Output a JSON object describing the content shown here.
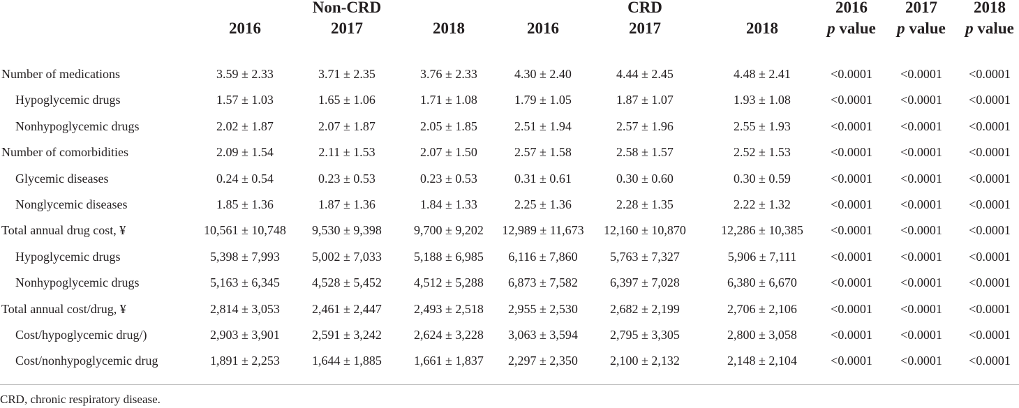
{
  "table": {
    "header": {
      "groups": [
        "Non-CRD",
        "CRD"
      ],
      "years": [
        "2016",
        "2017",
        "2018",
        "2016",
        "2017",
        "2018"
      ],
      "p_columns": [
        {
          "year": "2016",
          "label": "p value"
        },
        {
          "year": "2017",
          "label": "p value"
        },
        {
          "year": "2018",
          "label": "p value"
        }
      ]
    },
    "sections": [
      {
        "label": "Number of medications",
        "cells": [
          "3.59 ± 2.33",
          "3.71 ± 2.35",
          "3.76 ± 2.33",
          "4.30 ± 2.40",
          "4.44 ± 2.45",
          "4.48 ± 2.41",
          "<0.0001",
          "<0.0001",
          "<0.0001"
        ],
        "sub": [
          {
            "label": "Hypoglycemic drugs",
            "cells": [
              "1.57 ± 1.03",
              "1.65 ± 1.06",
              "1.71 ± 1.08",
              "1.79 ± 1.05",
              "1.87 ± 1.07",
              "1.93 ± 1.08",
              "<0.0001",
              "<0.0001",
              "<0.0001"
            ]
          },
          {
            "label": "Nonhypoglycemic drugs",
            "cells": [
              "2.02 ± 1.87",
              "2.07 ± 1.87",
              "2.05 ± 1.85",
              "2.51 ± 1.94",
              "2.57 ± 1.96",
              "2.55 ± 1.93",
              "<0.0001",
              "<0.0001",
              "<0.0001"
            ]
          }
        ]
      },
      {
        "label": "Number of comorbidities",
        "cells": [
          "2.09 ± 1.54",
          "2.11 ± 1.53",
          "2.07 ± 1.50",
          "2.57 ± 1.58",
          "2.58 ± 1.57",
          "2.52 ± 1.53",
          "<0.0001",
          "<0.0001",
          "<0.0001"
        ],
        "sub": [
          {
            "label": "Glycemic diseases",
            "cells": [
              "0.24 ± 0.54",
              "0.23 ± 0.53",
              "0.23 ± 0.53",
              "0.31 ± 0.61",
              "0.30 ± 0.60",
              "0.30 ± 0.59",
              "<0.0001",
              "<0.0001",
              "<0.0001"
            ]
          },
          {
            "label": "Nonglycemic diseases",
            "cells": [
              "1.85 ± 1.36",
              "1.87 ± 1.36",
              "1.84 ± 1.33",
              "2.25 ± 1.36",
              "2.28 ± 1.35",
              "2.22 ± 1.32",
              "<0.0001",
              "<0.0001",
              "<0.0001"
            ]
          }
        ]
      },
      {
        "label": "Total annual drug cost, ¥",
        "cells": [
          "10,561 ± 10,748",
          "9,530 ± 9,398",
          "9,700 ± 9,202",
          "12,989 ± 11,673",
          "12,160 ± 10,870",
          "12,286 ± 10,385",
          "<0.0001",
          "<0.0001",
          "<0.0001"
        ],
        "sub": [
          {
            "label": "Hypoglycemic drugs",
            "cells": [
              "5,398 ± 7,993",
              "5,002 ± 7,033",
              "5,188 ± 6,985",
              "6,116 ± 7,860",
              "5,763 ± 7,327",
              "5,906 ± 7,111",
              "<0.0001",
              "<0.0001",
              "<0.0001"
            ]
          },
          {
            "label": "Nonhypoglycemic drugs",
            "cells": [
              "5,163 ± 6,345",
              "4,528 ± 5,452",
              "4,512 ± 5,288",
              "6,873 ± 7,582",
              "6,397 ± 7,028",
              "6,380 ± 6,670",
              "<0.0001",
              "<0.0001",
              "<0.0001"
            ]
          }
        ]
      },
      {
        "label": "Total annual cost/drug, ¥",
        "cells": [
          "2,814 ± 3,053",
          "2,461 ± 2,447",
          "2,493 ± 2,518",
          "2,955 ± 2,530",
          "2,682 ± 2,199",
          "2,706 ± 2,106",
          "<0.0001",
          "<0.0001",
          "<0.0001"
        ],
        "sub": [
          {
            "label": "Cost/hypoglycemic drug/)",
            "cells": [
              "2,903 ± 3,901",
              "2,591 ± 3,242",
              "2,624 ± 3,228",
              "3,063 ± 3,594",
              "2,795 ± 3,305",
              "2,800 ± 3,058",
              "<0.0001",
              "<0.0001",
              "<0.0001"
            ]
          },
          {
            "label": "Cost/nonhypoglycemic drug",
            "cells": [
              "1,891 ± 2,253",
              "1,644 ± 1,885",
              "1,661 ± 1,837",
              "2,297 ± 2,350",
              "2,100 ± 2,132",
              "2,148 ± 2,104",
              "<0.0001",
              "<0.0001",
              "<0.0001"
            ]
          }
        ]
      }
    ],
    "footnote": "CRD, chronic respiratory disease."
  }
}
